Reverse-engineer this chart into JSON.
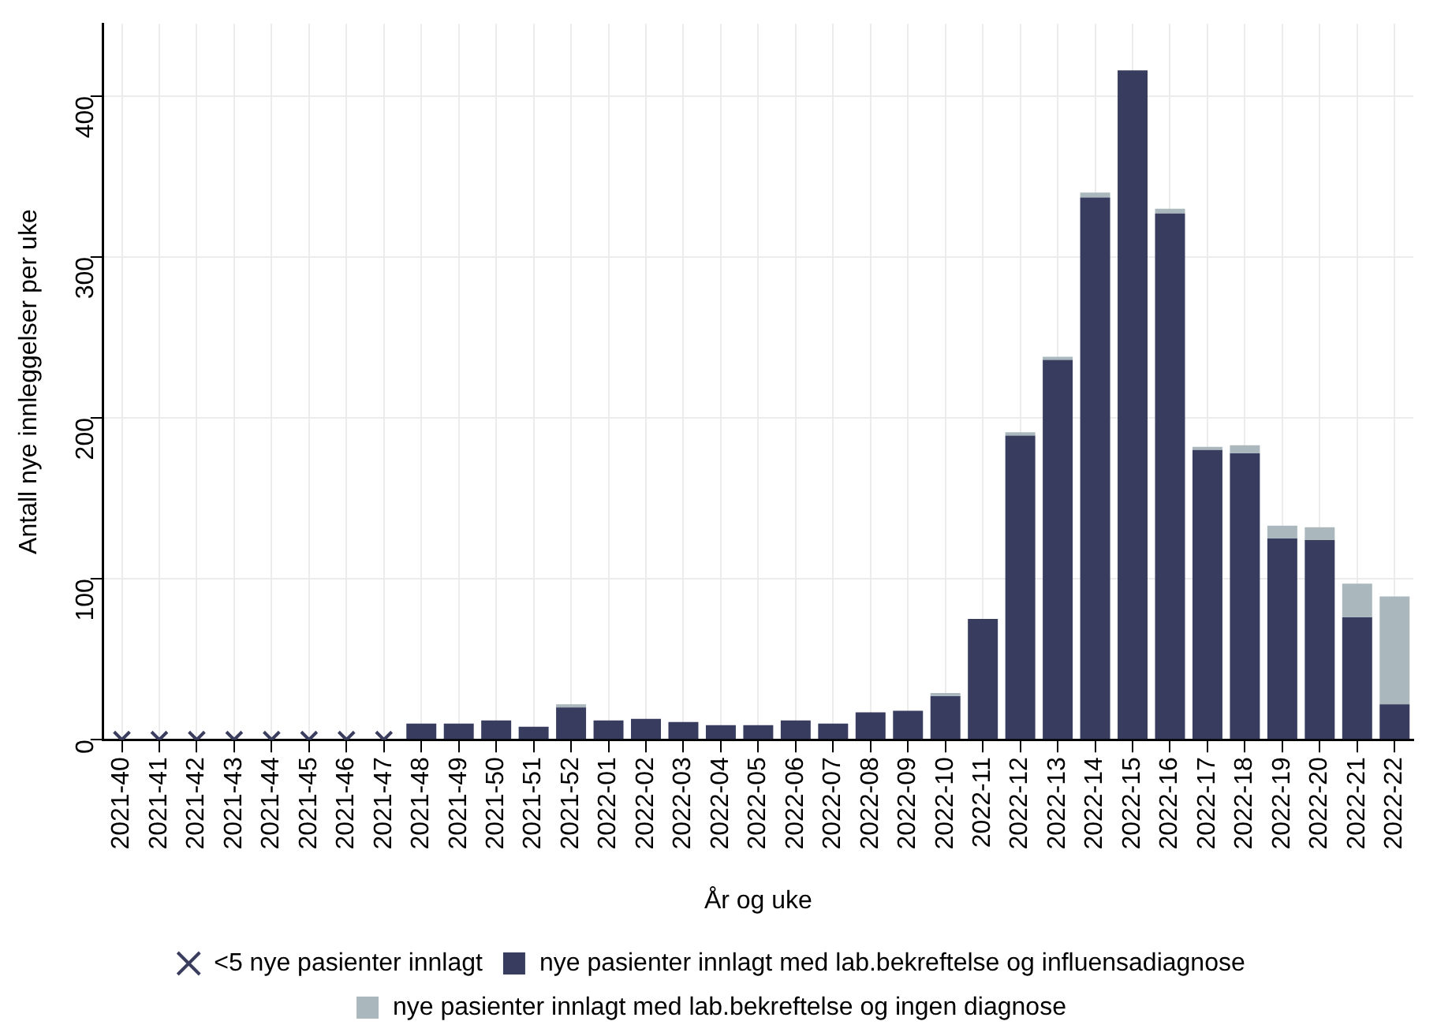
{
  "chart_data": {
    "type": "bar",
    "xlabel": "År og uke",
    "ylabel": "Antall nye innleggelser per uke",
    "categories": [
      "2021-40",
      "2021-41",
      "2021-42",
      "2021-43",
      "2021-44",
      "2021-45",
      "2021-46",
      "2021-47",
      "2021-48",
      "2021-49",
      "2021-50",
      "2021-51",
      "2021-52",
      "2022-01",
      "2022-02",
      "2022-03",
      "2022-04",
      "2022-05",
      "2022-06",
      "2022-07",
      "2022-08",
      "2022-09",
      "2022-10",
      "2022-11",
      "2022-12",
      "2022-13",
      "2022-14",
      "2022-15",
      "2022-16",
      "2022-17",
      "2022-18",
      "2022-19",
      "2022-20",
      "2022-21",
      "2022-22"
    ],
    "stacked": true,
    "ylim": [
      0,
      445
    ],
    "yticks": [
      0,
      100,
      200,
      300,
      400
    ],
    "grid": true,
    "legend": "bottom",
    "series": [
      {
        "name": "nye pasienter innlagt med lab.bekreftelse og influensadiagnose",
        "color": "#383c5f",
        "values": [
          null,
          null,
          null,
          null,
          null,
          null,
          null,
          null,
          10,
          10,
          12,
          8,
          20,
          12,
          13,
          11,
          9,
          9,
          12,
          10,
          17,
          18,
          27,
          75,
          189,
          236,
          337,
          416,
          327,
          180,
          178,
          125,
          124,
          76,
          22
        ]
      },
      {
        "name": "nye pasienter innlagt med lab.bekreftelse og ingen diagnose",
        "color": "#aab8bd",
        "values": [
          null,
          null,
          null,
          null,
          null,
          null,
          null,
          null,
          0,
          0,
          0,
          0,
          2,
          0,
          0,
          0,
          0,
          0,
          0,
          0,
          0,
          0,
          2,
          0,
          2,
          2,
          3,
          0,
          3,
          2,
          5,
          8,
          8,
          21,
          67
        ]
      },
      {
        "name": "<5 nye pasienter innlagt",
        "type": "scatter",
        "marker": "cross",
        "color": "#3a3d5e",
        "x": [
          "2021-40",
          "2021-41",
          "2021-42",
          "2021-43",
          "2021-44",
          "2021-45",
          "2021-46",
          "2021-47"
        ],
        "values": [
          0,
          0,
          0,
          0,
          0,
          0,
          0,
          0
        ]
      }
    ]
  }
}
